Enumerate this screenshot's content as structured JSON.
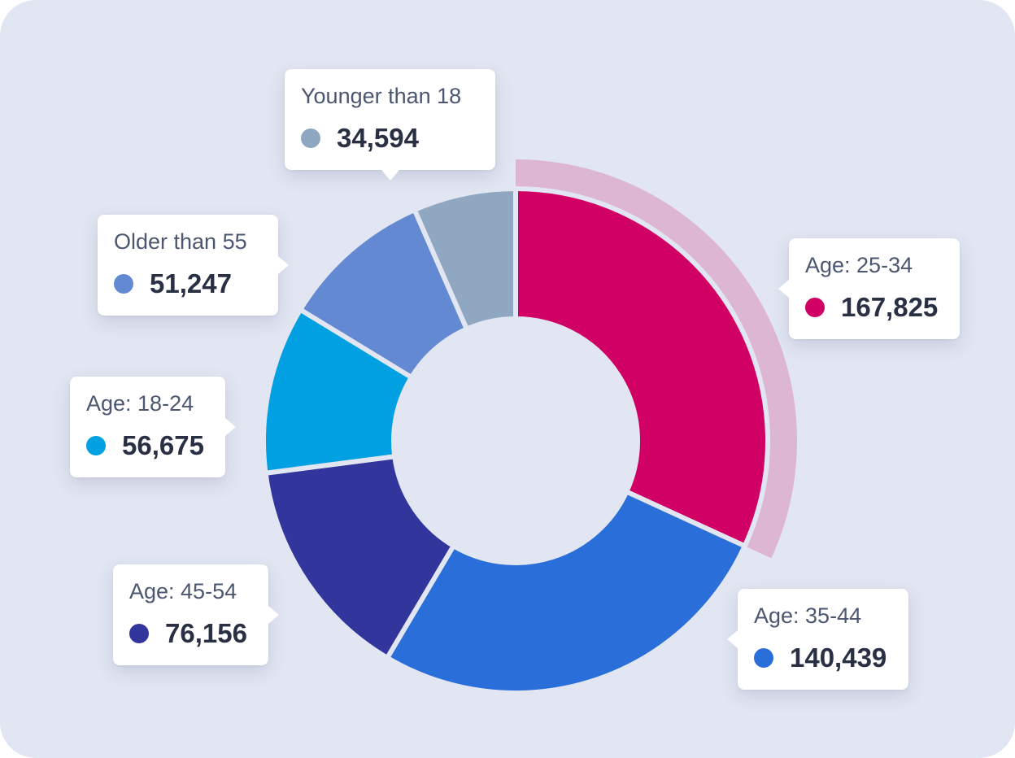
{
  "chart_data": {
    "type": "pie",
    "variant": "donut",
    "highlighted": "Age: 25-34",
    "series": [
      {
        "name": "Age: 25-34",
        "value": 167825,
        "display": "167,825",
        "color": "#d10064"
      },
      {
        "name": "Age: 35-44",
        "value": 140439,
        "display": "140,439",
        "color": "#2a6fd9"
      },
      {
        "name": "Age: 45-54",
        "value": 76156,
        "display": "76,156",
        "color": "#32369c"
      },
      {
        "name": "Age: 18-24",
        "value": 56675,
        "display": "56,675",
        "color": "#00a0e2"
      },
      {
        "name": "Older than 55",
        "value": 51247,
        "display": "51,247",
        "color": "#6389d2"
      },
      {
        "name": "Younger than 18",
        "value": 34594,
        "display": "34,594",
        "color": "#8fa7c0"
      }
    ],
    "highlight_color": "#ddb6d3",
    "background": "#e2e6f2"
  }
}
